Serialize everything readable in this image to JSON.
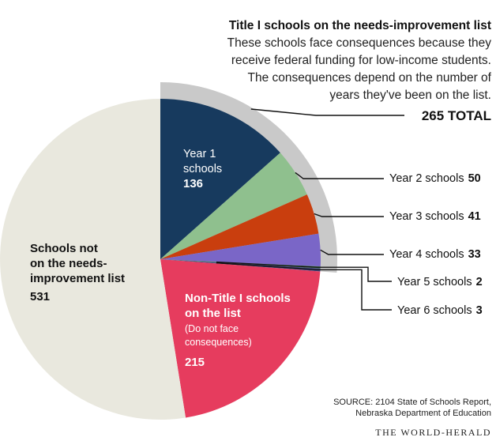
{
  "chart_data": {
    "type": "pie",
    "title": "Title I schools on the needs-improvement list",
    "subtitle_lines": [
      "These schools face consequences because they",
      "receive federal funding for low-income students.",
      "The consequences depend on the number of",
      "years they've been on the list."
    ],
    "title1_total_label": "265 TOTAL",
    "slices": [
      {
        "id": "year1",
        "lines": [
          "Year 1",
          "schools"
        ],
        "value": 136,
        "value_label": "136",
        "color": "#173a5e"
      },
      {
        "id": "year2",
        "label": "Year 2 schools",
        "value": 50,
        "value_label": "50",
        "color": "#8fc08e"
      },
      {
        "id": "year3",
        "label": "Year 3 schools",
        "value": 41,
        "value_label": "41",
        "color": "#c93e0e"
      },
      {
        "id": "year4",
        "label": "Year 4 schools",
        "value": 33,
        "value_label": "33",
        "color": "#7a66c7"
      },
      {
        "id": "year5",
        "label": "Year 5 schools",
        "value": 2,
        "value_label": "2",
        "color": "#4c8f56"
      },
      {
        "id": "year6",
        "label": "Year 6 schools",
        "value": 3,
        "value_label": "3",
        "color": "#4a4a8a"
      },
      {
        "id": "nontitle",
        "lines": [
          "Non-Title I schools",
          "on the list"
        ],
        "note_lines": [
          "(Do not face",
          "consequences)"
        ],
        "value": 215,
        "value_label": "215",
        "color": "#e63c5e"
      },
      {
        "id": "notlist",
        "lines": [
          "Schools not",
          "on the needs-",
          "improvement list"
        ],
        "value": 531,
        "value_label": "531",
        "color": "#e9e8de"
      }
    ],
    "source_lines": [
      "SOURCE: 2104 State of Schools Report,",
      "Nebraska Department of Education"
    ],
    "credit": "THE WORLD-HERALD"
  }
}
